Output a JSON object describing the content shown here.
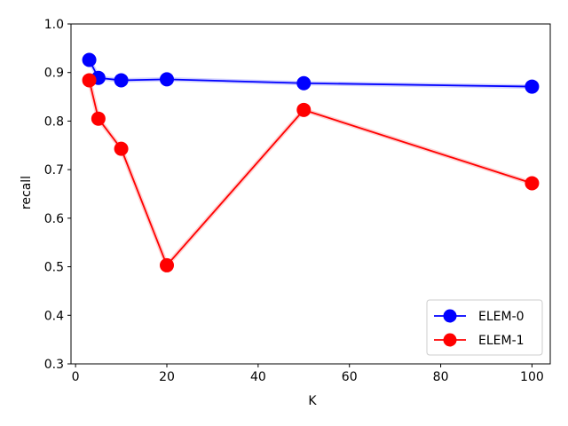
{
  "chart_data": {
    "type": "line",
    "xlabel": "K",
    "ylabel": "recall",
    "xlim": [
      -1,
      104
    ],
    "ylim": [
      0.3,
      1.0
    ],
    "xticks": [
      0,
      20,
      40,
      60,
      80,
      100
    ],
    "yticks": [
      0.3,
      0.4,
      0.5,
      0.6,
      0.7,
      0.8,
      0.9,
      1.0
    ],
    "xtick_labels": [
      "0",
      "20",
      "40",
      "60",
      "80",
      "100"
    ],
    "ytick_labels": [
      "0.3",
      "0.4",
      "0.5",
      "0.6",
      "0.7",
      "0.8",
      "0.9",
      "1.0"
    ],
    "grid": false,
    "legend_position": "lower-right",
    "series": [
      {
        "name": "ELEM-0",
        "color": "#0000ff",
        "x": [
          3,
          5,
          10,
          20,
          50,
          100
        ],
        "y": [
          0.926,
          0.889,
          0.884,
          0.886,
          0.878,
          0.871
        ]
      },
      {
        "name": "ELEM-1",
        "color": "#ff0000",
        "x": [
          3,
          5,
          10,
          20,
          50,
          100
        ],
        "y": [
          0.884,
          0.805,
          0.743,
          0.503,
          0.823,
          0.672
        ]
      }
    ]
  }
}
